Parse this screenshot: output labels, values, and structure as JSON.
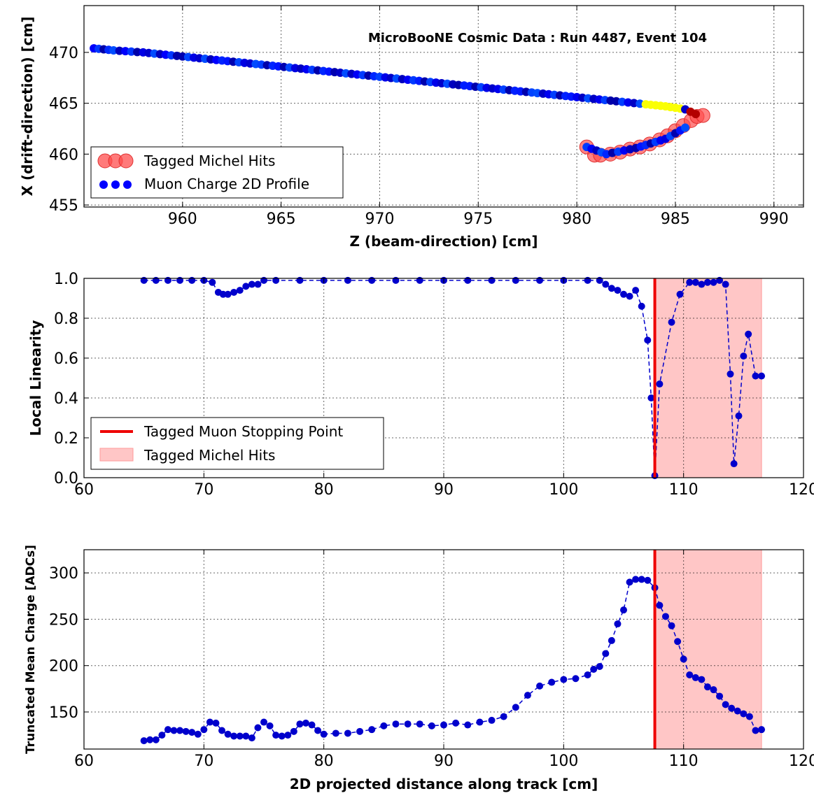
{
  "chart_data": [
    {
      "type": "scatter",
      "title": "MicroBooNE Cosmic Data : Run 4487, Event 104",
      "xlabel": "Z (beam-direction) [cm]",
      "ylabel": "X (drift-direction) [cm]",
      "xlim": [
        955,
        991.5
      ],
      "ylim": [
        454.8,
        474.6
      ],
      "xticks": [
        960,
        965,
        970,
        975,
        980,
        985,
        990
      ],
      "yticks": [
        455,
        460,
        465,
        470
      ],
      "grid": true,
      "legend_position": "lower-left",
      "series": [
        {
          "name": "Tagged Michel Hits",
          "color": "#ff4d4d",
          "x": [
            980.5,
            980.9,
            981.2,
            981.7,
            982.2,
            982.7,
            983.2,
            983.7,
            984.2,
            984.6,
            985.0,
            985.4,
            985.8,
            986.1,
            986.4
          ],
          "y": [
            460.7,
            459.9,
            459.9,
            460.0,
            460.2,
            460.5,
            460.7,
            461.0,
            461.4,
            461.8,
            462.3,
            462.8,
            463.3,
            463.7,
            463.8
          ]
        },
        {
          "name": "Muon Charge 2D Profile",
          "color": "#0000ff",
          "x": [
            955.5,
            956.5,
            958,
            960,
            962,
            964,
            966,
            968,
            970,
            972,
            974,
            976,
            978,
            980,
            982,
            983.5,
            984.5,
            985.5,
            986.3,
            980.5,
            981.5,
            983,
            984.5,
            985.5
          ],
          "y": [
            470.4,
            470.2,
            470.0,
            469.6,
            469.2,
            468.8,
            468.4,
            468.0,
            467.6,
            467.2,
            466.8,
            466.4,
            466.0,
            465.6,
            465.2,
            464.9,
            464.7,
            464.4,
            463.7,
            460.7,
            460.0,
            460.6,
            461.5,
            462.6
          ]
        }
      ]
    },
    {
      "type": "line",
      "xlabel": "",
      "ylabel": "Local Linearity",
      "xlim": [
        60,
        120
      ],
      "ylim": [
        0.0,
        1.0
      ],
      "xticks": [
        60,
        70,
        80,
        90,
        100,
        110,
        120
      ],
      "yticks": [
        0.0,
        0.2,
        0.4,
        0.6,
        0.8,
        1.0
      ],
      "grid": true,
      "legend_position": "lower-left",
      "stopping_point": 107.6,
      "michel_region": [
        107.6,
        116.5
      ],
      "legend": [
        "Tagged Muon Stopping Point",
        "Tagged Michel Hits"
      ],
      "series": [
        {
          "name": "",
          "color": "#0000cc",
          "x": [
            65,
            66,
            67,
            68,
            69,
            70,
            70.7,
            71.2,
            71.6,
            72,
            72.5,
            73,
            73.5,
            74,
            74.5,
            75,
            76,
            78,
            80,
            82,
            84,
            86,
            88,
            90,
            92,
            94,
            96,
            98,
            100,
            102,
            103,
            103.5,
            104,
            104.5,
            105,
            105.5,
            106,
            106.5,
            107,
            107.3,
            107.6,
            108,
            109,
            109.7,
            110.5,
            111,
            111.5,
            112,
            112.5,
            113,
            113.5,
            113.9,
            114.2,
            114.6,
            115,
            115.4,
            116,
            116.5
          ],
          "y": [
            0.99,
            0.99,
            0.99,
            0.99,
            0.99,
            0.99,
            0.98,
            0.93,
            0.92,
            0.92,
            0.93,
            0.94,
            0.96,
            0.97,
            0.97,
            0.99,
            0.99,
            0.99,
            0.99,
            0.99,
            0.99,
            0.99,
            0.99,
            0.99,
            0.99,
            0.99,
            0.99,
            0.99,
            0.99,
            0.99,
            0.99,
            0.97,
            0.95,
            0.94,
            0.92,
            0.91,
            0.94,
            0.86,
            0.69,
            0.4,
            0.01,
            0.47,
            0.78,
            0.92,
            0.98,
            0.98,
            0.97,
            0.98,
            0.98,
            0.99,
            0.97,
            0.52,
            0.07,
            0.31,
            0.61,
            0.72,
            0.51,
            0.51
          ]
        }
      ]
    },
    {
      "type": "line",
      "xlabel": "2D projected distance along track [cm]",
      "ylabel": "Truncated Mean Charge [ADCs]",
      "xlim": [
        60,
        120
      ],
      "ylim": [
        110,
        325
      ],
      "xticks": [
        60,
        70,
        80,
        90,
        100,
        110,
        120
      ],
      "yticks": [
        150,
        200,
        250,
        300
      ],
      "grid": true,
      "stopping_point": 107.6,
      "michel_region": [
        107.6,
        116.5
      ],
      "series": [
        {
          "name": "",
          "color": "#0000cc",
          "x": [
            65,
            65.5,
            66,
            66.5,
            67,
            67.5,
            68,
            68.5,
            69,
            69.5,
            70,
            70.5,
            71,
            71.5,
            72,
            72.5,
            73,
            73.5,
            74,
            74.5,
            75,
            75.5,
            76,
            76.5,
            77,
            77.5,
            78,
            78.5,
            79,
            79.5,
            80,
            81,
            82,
            83,
            84,
            85,
            86,
            87,
            88,
            89,
            90,
            91,
            92,
            93,
            94,
            95,
            96,
            97,
            98,
            99,
            100,
            101,
            102,
            102.5,
            103,
            103.5,
            104,
            104.5,
            105,
            105.5,
            106,
            106.5,
            107,
            107.6,
            108,
            108.5,
            109,
            109.5,
            110,
            110.5,
            111,
            111.5,
            112,
            112.5,
            113,
            113.5,
            114,
            114.5,
            115,
            115.5,
            116,
            116.5
          ],
          "y": [
            119,
            120,
            120,
            125,
            131,
            130,
            130,
            129,
            128,
            126,
            131,
            139,
            138,
            130,
            126,
            124,
            124,
            124,
            122,
            133,
            139,
            135,
            125,
            124,
            125,
            129,
            137,
            138,
            136,
            130,
            126,
            127,
            127,
            129,
            131,
            135,
            137,
            137,
            137,
            135,
            136,
            138,
            136,
            139,
            141,
            145,
            155,
            168,
            178,
            182,
            185,
            186,
            190,
            196,
            199,
            213,
            227,
            245,
            260,
            290,
            293,
            293,
            292,
            284,
            265,
            253,
            243,
            226,
            207,
            190,
            187,
            185,
            177,
            174,
            167,
            158,
            154,
            151,
            148,
            145,
            130,
            131
          ]
        }
      ]
    }
  ]
}
